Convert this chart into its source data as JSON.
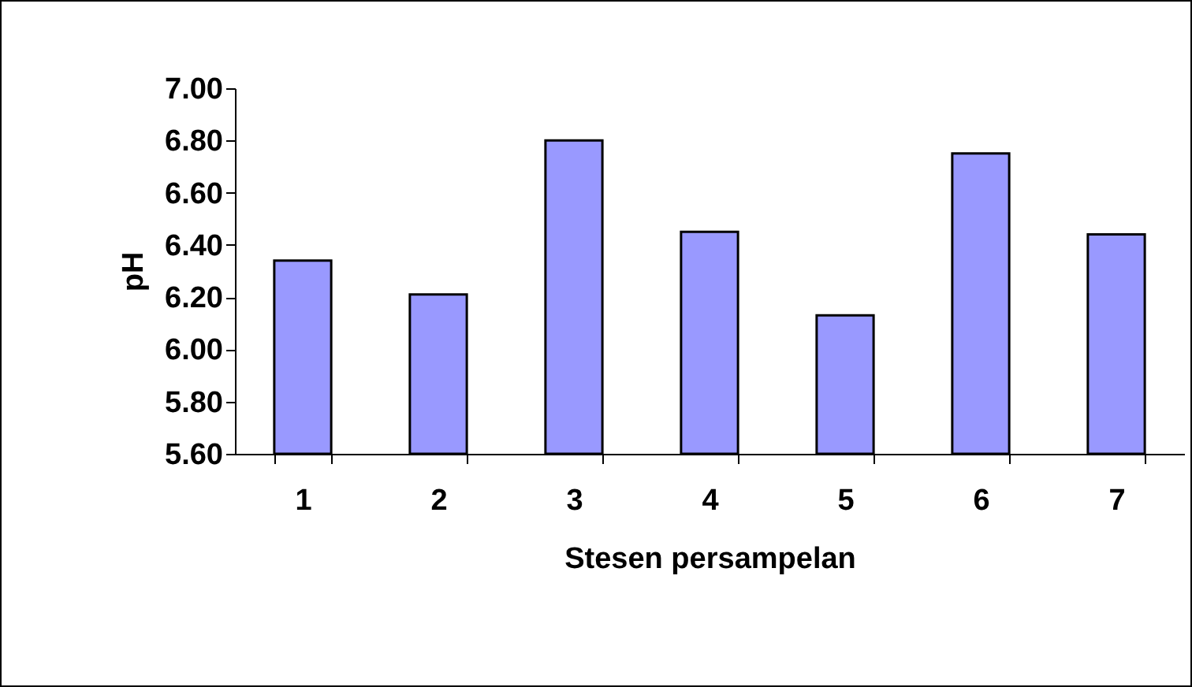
{
  "chart_data": {
    "type": "bar",
    "xlabel": "Stesen persampelan",
    "ylabel": "pH",
    "categories": [
      "1",
      "2",
      "3",
      "4",
      "5",
      "6",
      "7"
    ],
    "values": [
      6.34,
      6.21,
      6.8,
      6.45,
      6.13,
      6.75,
      6.44
    ],
    "color": "#9999ff",
    "ylim": [
      5.6,
      7.0
    ],
    "yticks": [
      {
        "value": 5.6,
        "label": "5.60"
      },
      {
        "value": 5.8,
        "label": "5.80"
      },
      {
        "value": 6.0,
        "label": "6.00"
      },
      {
        "value": 6.2,
        "label": "6.20"
      },
      {
        "value": 6.4,
        "label": "6.40"
      },
      {
        "value": 6.6,
        "label": "6.60"
      },
      {
        "value": 6.8,
        "label": "6.80"
      },
      {
        "value": 7.0,
        "label": "7.00"
      }
    ],
    "grid": false
  }
}
